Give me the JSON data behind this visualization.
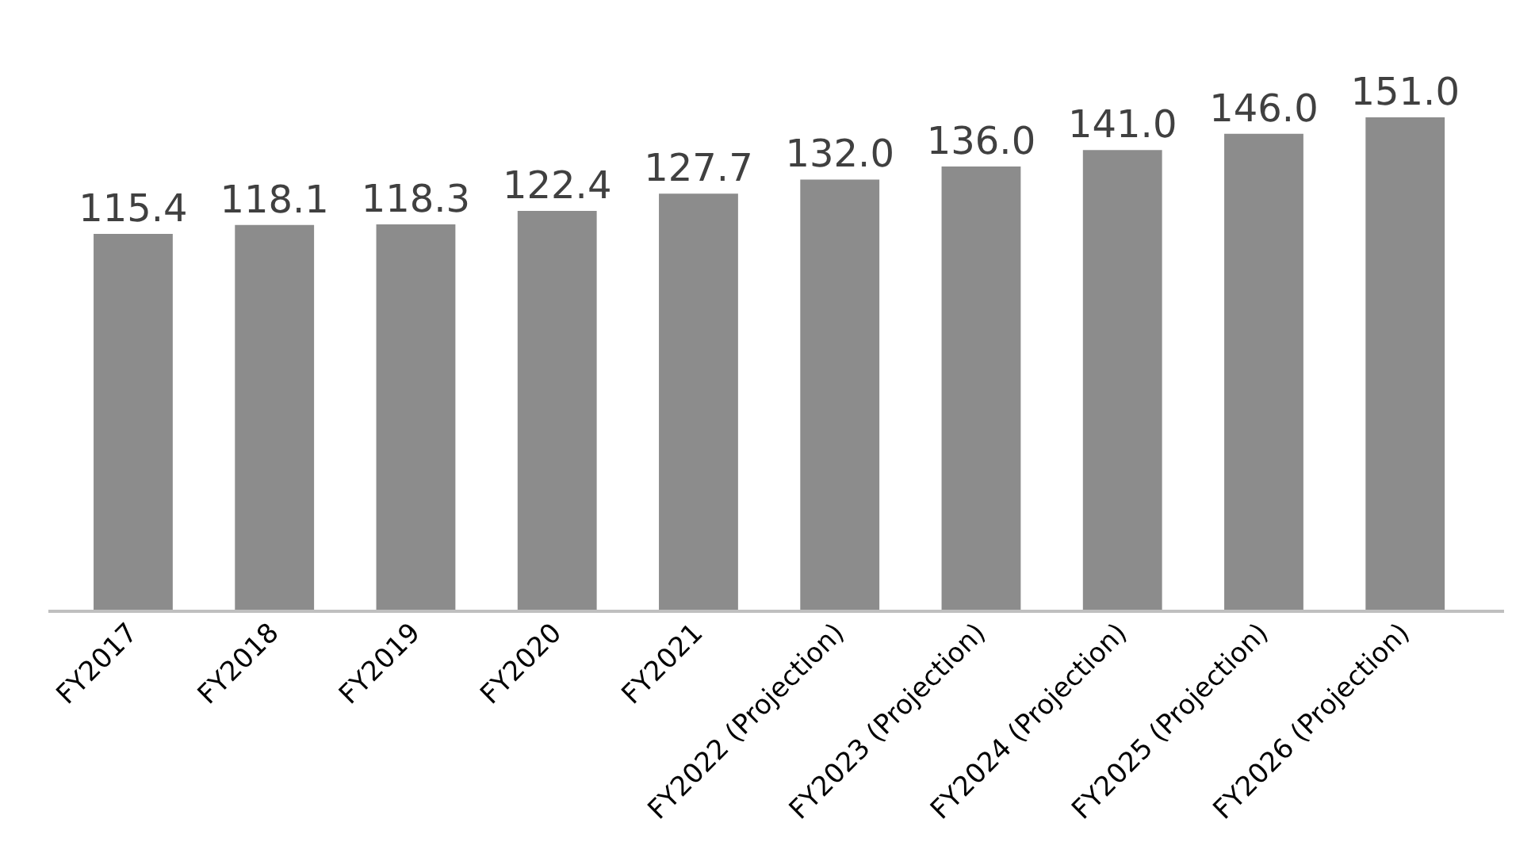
{
  "chart_data": {
    "type": "bar",
    "categories": [
      "FY2017",
      "FY2018",
      "FY2019",
      "FY2020",
      "FY2021",
      "FY2022 (Projection)",
      "FY2023 (Projection)",
      "FY2024 (Projection)",
      "FY2025 (Projection)",
      "FY2026 (Projection)"
    ],
    "values": [
      115.4,
      118.1,
      118.3,
      122.4,
      127.7,
      132.0,
      136.0,
      141.0,
      146.0,
      151.0
    ],
    "value_labels": [
      "115.4",
      "118.1",
      "118.3",
      "122.4",
      "127.7",
      "132.0",
      "136.0",
      "141.0",
      "146.0",
      "151.0"
    ],
    "color": "#8c8c8c"
  }
}
